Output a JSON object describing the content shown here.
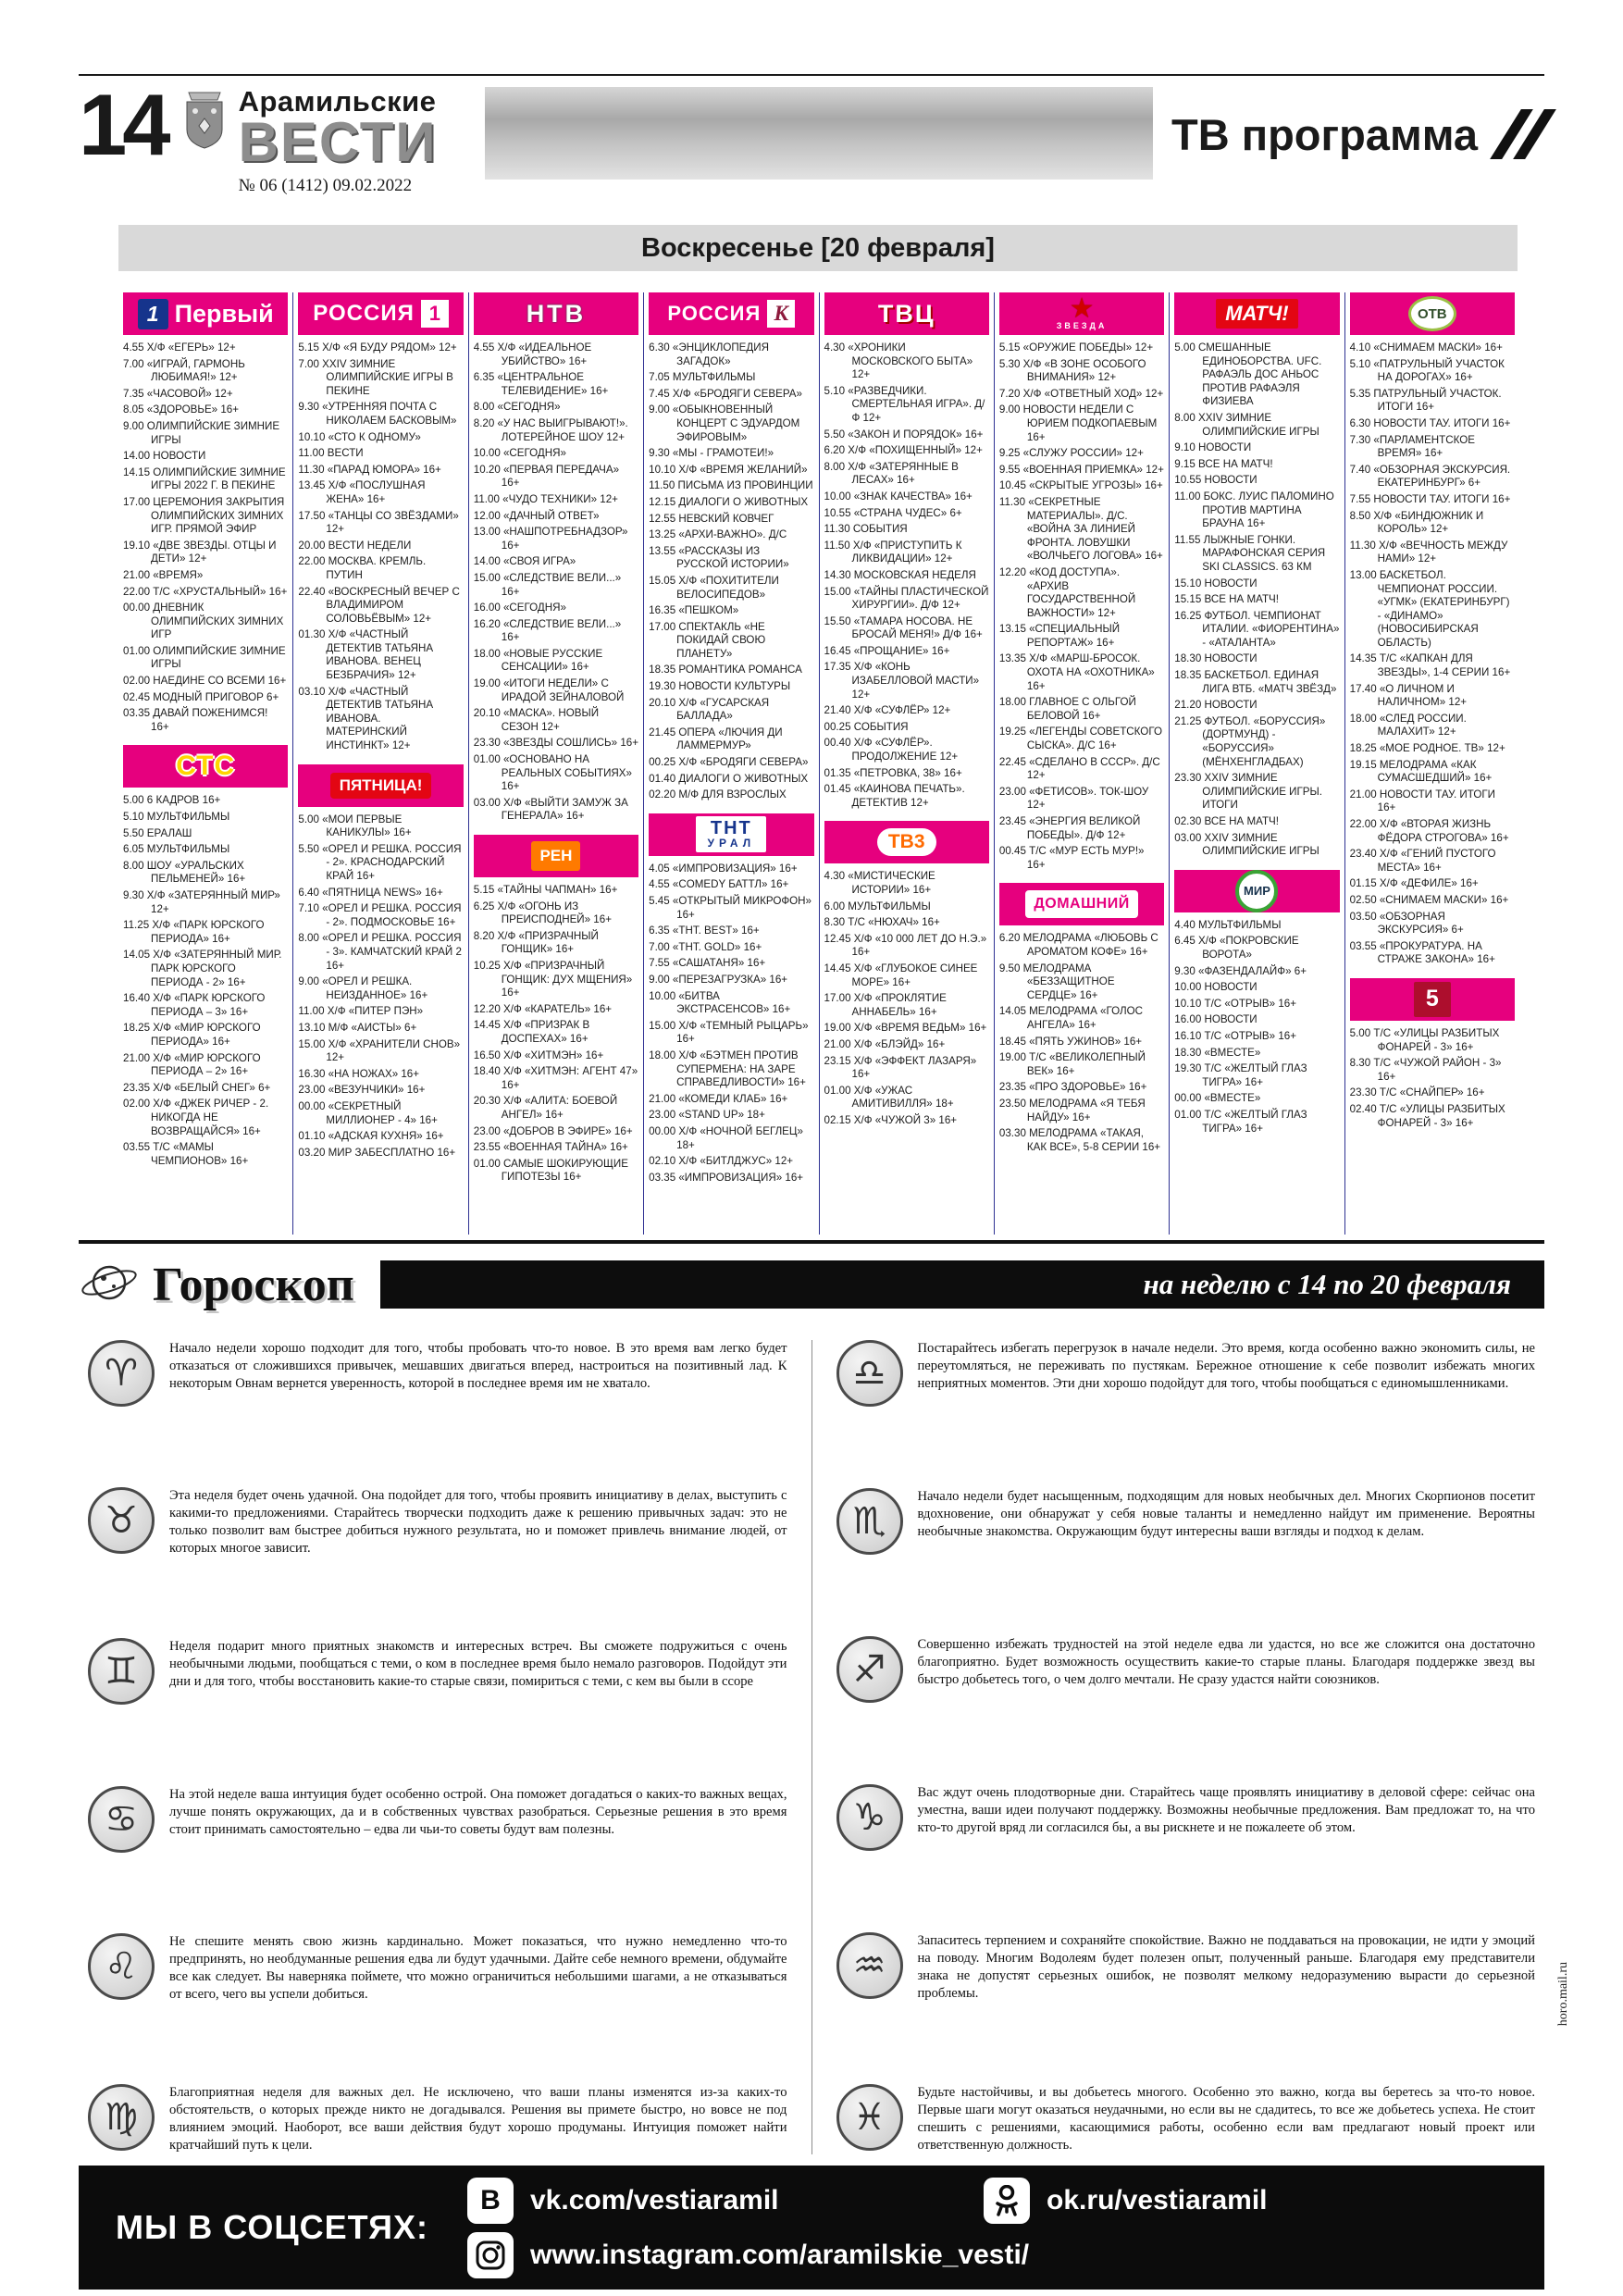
{
  "page": {
    "number": "14",
    "brand_top": "Арамильские",
    "brand_bottom": "ВЕСТИ",
    "issue": "№ 06 (1412) 09.02.2022",
    "section_title": "ТВ программа"
  },
  "colors": {
    "accent_pink": "#e6007e",
    "separator_blue": "#2e3192",
    "banner_gray": "#d9d9d9",
    "footer_black": "#0c0c0c"
  },
  "tv": {
    "day_banner": "Воскресенье [20 февраля]",
    "columns": [
      [
        {
          "key": "pervyi",
          "name": "Первый",
          "logo": {
            "t1": "1",
            "t2": "Первый"
          },
          "programs": [
            "4.55 Х/Ф «ЕГЕРЬ» 12+",
            "7.00 «ИГРАЙ, ГАРМОНЬ ЛЮБИМАЯ!» 12+",
            "7.35 «ЧАСОВОЙ» 12+",
            "8.05 «ЗДОРОВЬЕ» 16+",
            "9.00 ОЛИМПИЙСКИЕ ЗИМНИЕ ИГРЫ",
            "14.00 НОВОСТИ",
            "14.15 ОЛИМПИЙСКИЕ ЗИМНИЕ ИГРЫ 2022 Г. В ПЕКИНЕ",
            "17.00 ЦЕРЕМОНИЯ ЗАКРЫТИЯ ОЛИМПИЙСКИХ ЗИМНИХ ИГР. ПРЯМОЙ ЭФИР",
            "19.10 «ДВЕ ЗВЕЗДЫ. ОТЦЫ И ДЕТИ» 12+",
            "21.00 «ВРЕМЯ»",
            "22.00 Т/С «ХРУСТАЛЬНЫЙ» 16+",
            "00.00 ДНЕВНИК ОЛИМПИЙСКИХ ЗИМНИХ ИГР",
            "01.00 ОЛИМПИЙСКИЕ ЗИМНИЕ ИГРЫ",
            "02.00 НАЕДИНЕ СО ВСЕМИ 16+",
            "02.45 МОДНЫЙ ПРИГОВОР 6+",
            "03.35 ДАВАЙ ПОЖЕНИМСЯ! 16+"
          ]
        },
        {
          "key": "sts",
          "name": "СТС",
          "logo": {
            "t1": "СТС",
            "t2": ""
          },
          "programs": [
            "5.00 6 КАДРОВ 16+",
            "5.10 МУЛЬТФИЛЬМЫ",
            "5.50 ЕРАЛАШ",
            "6.05 МУЛЬТФИЛЬМЫ",
            "8.00 ШОУ «УРАЛЬСКИХ ПЕЛЬМЕНЕЙ» 16+",
            "9.30 Х/Ф «ЗАТЕРЯННЫЙ МИР» 12+",
            "11.25 Х/Ф «ПАРК ЮРСКОГО ПЕРИОДА» 16+",
            "14.05 Х/Ф «ЗАТЕРЯННЫЙ МИР. ПАРК ЮРСКОГО ПЕРИОДА - 2» 16+",
            "16.40 Х/Ф «ПАРК ЮРСКОГО ПЕРИОДА – 3» 16+",
            "18.25 Х/Ф «МИР ЮРСКОГО ПЕРИОДА» 16+",
            "21.00 Х/Ф «МИР ЮРСКОГО ПЕРИОДА – 2» 16+",
            "23.35 Х/Ф «БЕЛЫЙ СНЕГ» 6+",
            "02.00 Х/Ф «ДЖЕК РИЧЕР - 2. НИКОГДА НЕ ВОЗВРАЩАЙСЯ» 16+",
            "03.55 Т/С «МАМЫ ЧЕМПИОНОВ» 16+"
          ]
        }
      ],
      [
        {
          "key": "rossiya1",
          "name": "РОССИЯ 1",
          "logo": {
            "t1": "РОССИЯ",
            "t2": "1"
          },
          "programs": [
            "5.15 Х/Ф «Я БУДУ РЯДОМ» 12+",
            "7.00 XXIV ЗИМНИЕ ОЛИМПИЙСКИЕ ИГРЫ В ПЕКИНЕ",
            "9.30 «УТРЕННЯЯ ПОЧТА С НИКОЛАЕМ БАСКОВЫМ»",
            "10.10 «СТО К ОДНОМУ»",
            "11.00 ВЕСТИ",
            "11.30 «ПАРАД ЮМОРА» 16+",
            "13.45 Х/Ф «ПОСЛУШНАЯ ЖЕНА» 16+",
            "17.50 «ТАНЦЫ СО ЗВЁЗДАМИ» 12+",
            "20.00 ВЕСТИ НЕДЕЛИ",
            "22.00 МОСКВА. КРЕМЛЬ. ПУТИН",
            "22.40 «ВОСКРЕСНЫЙ ВЕЧЕР С ВЛАДИМИРОМ СОЛОВЬЁВЫМ» 12+",
            "01.30 Х/Ф «ЧАСТНЫЙ ДЕТЕКТИВ ТАТЬЯНА ИВАНОВА. ВЕНЕЦ БЕЗБРАЧИЯ» 12+",
            "03.10 Х/Ф «ЧАСТНЫЙ ДЕТЕКТИВ ТАТЬЯНА ИВАНОВА. МАТЕРИНСКИЙ ИНСТИНКТ» 12+"
          ]
        },
        {
          "key": "pyatnica",
          "name": "ПЯТНИЦА!",
          "logo": {
            "t1": "ПЯТНИЦА!",
            "t2": ""
          },
          "programs": [
            "5.00 «МОИ ПЕРВЫЕ КАНИКУЛЫ» 16+",
            "5.50 «ОРЕЛ И РЕШКА. РОССИЯ - 2». КРАСНОДАРСКИЙ КРАЙ 16+",
            "6.40 «ПЯТНИЦА NEWS» 16+",
            "7.10 «ОРЕЛ И РЕШКА. РОССИЯ - 2». ПОДМОСКОВЬЕ 16+",
            "8.00 «ОРЕЛ И РЕШКА. РОССИЯ - 3». КАМЧАТСКИЙ КРАЙ 2 16+",
            "9.00 «ОРЕЛ И РЕШКА. НЕИЗДАННОЕ» 16+",
            "11.00 Х/Ф «ПИТЕР ПЭН»",
            "13.10 М/Ф «АИСТЫ» 6+",
            "15.00 Х/Ф «ХРАНИТЕЛИ СНОВ» 12+",
            "16.30 «НА НОЖАХ» 16+",
            "23.00 «ВЕЗУНЧИКИ» 16+",
            "00.00 «СЕКРЕТНЫЙ МИЛЛИОНЕР - 4» 16+",
            "01.10 «АДСКАЯ КУХНЯ» 16+",
            "03.20 МИР ЗАБЕСПЛАТНО 16+"
          ]
        }
      ],
      [
        {
          "key": "ntv",
          "name": "НТВ",
          "logo": {
            "t1": "НТВ",
            "t2": ""
          },
          "programs": [
            "4.55 Х/Ф «ИДЕАЛЬНОЕ УБИЙСТВО» 16+",
            "6.35 «ЦЕНТРАЛЬНОЕ ТЕЛЕВИДЕНИЕ» 16+",
            "8.00 «СЕГОДНЯ»",
            "8.20 «У НАС ВЫИГРЫВАЮТ!». ЛОТЕРЕЙНОЕ ШОУ 12+",
            "10.00 «СЕГОДНЯ»",
            "10.20 «ПЕРВАЯ ПЕРЕДАЧА» 16+",
            "11.00 «ЧУДО ТЕХНИКИ» 12+",
            "12.00 «ДАЧНЫЙ ОТВЕТ»",
            "13.00 «НАШПОТРЕБНАДЗОР» 16+",
            "14.00 «СВОЯ ИГРА»",
            "15.00 «СЛЕДСТВИЕ ВЕЛИ...» 16+",
            "16.00 «СЕГОДНЯ»",
            "16.20 «СЛЕДСТВИЕ ВЕЛИ...» 16+",
            "18.00 «НОВЫЕ РУССКИЕ СЕНСАЦИИ» 16+",
            "19.00 «ИТОГИ НЕДЕЛИ» С ИРАДОЙ ЗЕЙНАЛОВОЙ",
            "20.10 «МАСКА». НОВЫЙ СЕЗОН 12+",
            "23.30 «ЗВЕЗДЫ СОШЛИСЬ» 16+",
            "01.00 «ОСНОВАНО НА РЕАЛЬНЫХ СОБЫТИЯХ» 16+",
            "03.00 Х/Ф «ВЫЙТИ ЗАМУЖ ЗА ГЕНЕРАЛА» 16+"
          ]
        },
        {
          "key": "ren",
          "name": "РЕН",
          "logo": {
            "t1": "РЕН",
            "t2": ""
          },
          "programs": [
            "5.15 «ТАЙНЫ ЧАПМАН» 16+",
            "6.25 Х/Ф «ОГОНЬ ИЗ ПРЕИСПОДНЕЙ» 16+",
            "8.20 Х/Ф «ПРИЗРАЧНЫЙ ГОНЩИК» 16+",
            "10.25 Х/Ф «ПРИЗРАЧНЫЙ ГОНЩИК: ДУХ МЩЕНИЯ» 16+",
            "12.20 Х/Ф «КАРАТЕЛЬ» 16+",
            "14.45 Х/Ф «ПРИЗРАК В ДОСПЕХАХ» 16+",
            "16.50 Х/Ф «ХИТМЭН» 16+",
            "18.40 Х/Ф «ХИТМЭН: АГЕНТ 47» 16+",
            "20.30 Х/Ф «АЛИТА: БОЕВОЙ АНГЕЛ» 16+",
            "23.00 «ДОБРОВ В ЭФИРЕ» 16+",
            "23.55 «ВОЕННАЯ ТАЙНА» 16+",
            "01.00 САМЫЕ ШОКИРУЮЩИЕ ГИПОТЕЗЫ 16+"
          ]
        }
      ],
      [
        {
          "key": "kultura",
          "name": "РОССИЯ К",
          "logo": {
            "t1": "РОССИЯ",
            "t2": "К"
          },
          "programs": [
            "6.30 «ЭНЦИКЛОПЕДИЯ ЗАГАДОК»",
            "7.05 МУЛЬТФИЛЬМЫ",
            "7.45 Х/Ф «БРОДЯГИ СЕВЕРА»",
            "9.00 «ОБЫКНОВЕННЫЙ КОНЦЕРТ С ЭДУАРДОМ ЭФИРОВЫМ»",
            "9.30 «МЫ - ГРАМОТЕИ!»",
            "10.10 Х/Ф «ВРЕМЯ ЖЕЛАНИЙ»",
            "11.50 ПИСЬМА ИЗ ПРОВИНЦИИ",
            "12.15 ДИАЛОГИ О ЖИВОТНЫХ",
            "12.55 НЕВСКИЙ КОВЧЕГ",
            "13.25 «АРХИ-ВАЖНО». Д/С",
            "13.55 «РАССКАЗЫ ИЗ РУССКОЙ ИСТОРИИ»",
            "15.05 Х/Ф «ПОХИТИТЕЛИ ВЕЛОСИПЕДОВ»",
            "16.35 «ПЕШКОМ»",
            "17.00 СПЕКТАКЛЬ «НЕ ПОКИДАЙ СВОЮ ПЛАНЕТУ»",
            "18.35 РОМАНТИКА РОМАНСА",
            "19.30 НОВОСТИ КУЛЬТУРЫ",
            "20.10 Х/Ф «ГУСАРСКАЯ БАЛЛАДА»",
            "21.45 ОПЕРА «ЛЮЧИЯ ДИ ЛАММЕРМУР»",
            "00.25 Х/Ф «БРОДЯГИ СЕВЕРА»",
            "01.40 ДИАЛОГИ О ЖИВОТНЫХ",
            "02.20 М/Ф ДЛЯ ВЗРОСЛЫХ"
          ]
        },
        {
          "key": "tnt",
          "name": "ТНТ УРАЛ",
          "logo": {
            "t1": "ТНТ",
            "t2": "УРАЛ"
          },
          "programs": [
            "4.05 «ИМПРОВИЗАЦИЯ» 16+",
            "4.55 «COMEDY БАТТЛ» 16+",
            "5.45 «ОТКРЫТЫЙ МИКРОФОН» 16+",
            "6.35 «ТНТ. BEST» 16+",
            "7.00 «ТНТ. GOLD» 16+",
            "7.55 «САШАТАНЯ» 16+",
            "9.00 «ПЕРЕЗАГРУЗКА» 16+",
            "10.00 «БИТВА ЭКСТРАСЕНСОВ» 16+",
            "15.00 Х/Ф «ТЕМНЫЙ РЫЦАРЬ» 16+",
            "18.00 Х/Ф «БЭТМЕН ПРОТИВ СУПЕРМЕНА: НА ЗАРЕ СПРАВЕДЛИВОСТИ» 16+",
            "21.00 «КОМЕДИ КЛАБ» 16+",
            "23.00 «STAND UP» 18+",
            "00.00 Х/Ф «НОЧНОЙ БЕГЛЕЦ» 18+",
            "02.10 Х/Ф «БИТЛДЖУС» 12+",
            "03.35 «ИМПРОВИЗАЦИЯ» 16+"
          ]
        }
      ],
      [
        {
          "key": "tvc",
          "name": "ТВЦ",
          "logo": {
            "t1": "ТВЦ",
            "t2": ""
          },
          "programs": [
            "4.30 «ХРОНИКИ МОСКОВСКОГО БЫТА» 12+",
            "5.10 «РАЗВЕДЧИКИ. СМЕРТЕЛЬНАЯ ИГРА». Д/Ф 12+",
            "5.50 «ЗАКОН И ПОРЯДОК» 16+",
            "6.20 Х/Ф «ПОХИЩЕННЫЙ» 12+",
            "8.00 Х/Ф «ЗАТЕРЯННЫЕ В ЛЕСАХ» 16+",
            "10.00 «ЗНАК КАЧЕСТВА» 16+",
            "10.55 «СТРАНА ЧУДЕС» 6+",
            "11.30 СОБЫТИЯ",
            "11.50 Х/Ф «ПРИСТУПИТЬ К ЛИКВИДАЦИИ» 12+",
            "14.30 МОСКОВСКАЯ НЕДЕЛЯ",
            "15.00 «ТАЙНЫ ПЛАСТИЧЕСКОЙ ХИРУРГИИ». Д/Ф 12+",
            "15.50 «ТАМАРА НОСОВА. НЕ БРОСАЙ МЕНЯ!» Д/Ф 16+",
            "16.45 «ПРОЩАНИЕ» 16+",
            "17.35 Х/Ф «КОНЬ ИЗАБЕЛЛОВОЙ МАСТИ» 12+",
            "21.40 Х/Ф «СУФЛЁР» 12+",
            "00.25 СОБЫТИЯ",
            "00.40 Х/Ф «СУФЛЁР». ПРОДОЛЖЕНИЕ 12+",
            "01.35 «ПЕТРОВКА, 38» 16+",
            "01.45 «КАИНОВА ПЕЧАТЬ». ДЕТЕКТИВ 12+"
          ]
        },
        {
          "key": "tv3",
          "name": "ТВ3",
          "logo": {
            "t1": "ТВ3",
            "t2": ""
          },
          "programs": [
            "4.30 «МИСТИЧЕСКИЕ ИСТОРИИ» 16+",
            "6.00 МУЛЬТФИЛЬМЫ",
            "8.30 Т/С «НЮХАЧ» 16+",
            "12.45 Х/Ф «10 000 ЛЕТ ДО Н.Э.» 16+",
            "14.45 Х/Ф «ГЛУБОКОЕ СИНЕЕ МОРЕ» 16+",
            "17.00 Х/Ф «ПРОКЛЯТИЕ АННАБЕЛЬ» 16+",
            "19.00 Х/Ф «ВРЕМЯ ВЕДЬМ» 16+",
            "21.00 Х/Ф «БЛЭЙД» 16+",
            "23.15 Х/Ф «ЭФФЕКТ ЛАЗАРЯ» 16+",
            "01.00 Х/Ф «УЖАС АМИТИВИЛЛЯ» 18+",
            "02.15 Х/Ф «ЧУЖОЙ 3» 16+"
          ]
        }
      ],
      [
        {
          "key": "zvezda",
          "name": "ЗВЕЗДА",
          "logo": {
            "t1": "★",
            "t2": "ЗВЕЗДА"
          },
          "programs": [
            "5.15 «ОРУЖИЕ ПОБЕДЫ» 12+",
            "5.30 Х/Ф «В ЗОНЕ ОСОБОГО ВНИМАНИЯ» 12+",
            "7.20 Х/Ф «ОТВЕТНЫЙ ХОД» 12+",
            "9.00 НОВОСТИ НЕДЕЛИ С ЮРИЕМ ПОДКОПАЕВЫМ 16+",
            "9.25 «СЛУЖУ РОССИИ» 12+",
            "9.55 «ВОЕННАЯ ПРИЕМКА» 12+",
            "10.45 «СКРЫТЫЕ УГРОЗЫ» 16+",
            "11.30 «СЕКРЕТНЫЕ МАТЕРИАЛЫ». Д/С. «ВОЙНА ЗА ЛИНИЕЙ ФРОНТА. ЛОВУШКИ «ВОЛЧЬЕГО ЛОГОВА» 16+",
            "12.20 «КОД ДОСТУПА». «АРХИВ ГОСУДАРСТВЕННОЙ ВАЖНОСТИ» 12+",
            "13.15 «СПЕЦИАЛЬНЫЙ РЕПОРТАЖ» 16+",
            "13.35 Х/Ф «МАРШ-БРОСОК. ОХОТА НА «ОХОТНИКА» 16+",
            "18.00 ГЛАВНОЕ С ОЛЬГОЙ БЕЛОВОЙ 16+",
            "19.25 «ЛЕГЕНДЫ СОВЕТСКОГО СЫСКА». Д/С 16+",
            "22.45 «СДЕЛАНО В СССР». Д/С 12+",
            "23.00 «ФЕТИСОВ». ТОК-ШОУ 12+",
            "23.45 «ЭНЕРГИЯ ВЕЛИКОЙ ПОБЕДЫ». Д/Ф 12+",
            "00.45 Т/С «МУР ЕСТЬ МУР!» 16+"
          ]
        },
        {
          "key": "domashniy",
          "name": "ДОМАШНИЙ",
          "logo": {
            "t1": "ДОМАШНИЙ",
            "t2": ""
          },
          "programs": [
            "6.20 МЕЛОДРАМА «ЛЮБОВЬ С АРОМАТОМ КОФЕ» 16+",
            "9.50 МЕЛОДРАМА «БЕЗЗАЩИТНОЕ СЕРДЦЕ» 16+",
            "14.05 МЕЛОДРАМА «ГОЛОС АНГЕЛА» 16+",
            "18.45 «ПЯТЬ УЖИНОВ» 16+",
            "19.00 Т/С «ВЕЛИКОЛЕПНЫЙ ВЕК» 16+",
            "23.35 «ПРО ЗДОРОВЬЕ» 16+",
            "23.50 МЕЛОДРАМА «Я ТЕБЯ НАЙДУ» 16+",
            "03.30 МЕЛОДРАМА «ТАКАЯ, КАК ВСЕ», 5-8 СЕРИИ 16+"
          ]
        }
      ],
      [
        {
          "key": "match",
          "name": "МАТЧ!",
          "logo": {
            "t1": "МАТЧ!",
            "t2": ""
          },
          "programs": [
            "5.00 СМЕШАННЫЕ ЕДИНОБОРСТВА. UFC. РАФАЭЛЬ ДОС АНЬОС ПРОТИВ РАФАЭЛЯ ФИЗИЕВА",
            "8.00 XXIV ЗИМНИЕ ОЛИМПИЙСКИЕ ИГРЫ",
            "9.10 НОВОСТИ",
            "9.15 ВСЕ НА МАТЧ!",
            "10.55 НОВОСТИ",
            "11.00 БОКС. ЛУИС ПАЛОМИНО ПРОТИВ МАРТИНА БРАУНА 16+",
            "11.55 ЛЫЖНЫЕ ГОНКИ. МАРАФОНСКАЯ СЕРИЯ SKI CLASSICS. 63 КМ",
            "15.10 НОВОСТИ",
            "15.15 ВСЕ НА МАТЧ!",
            "16.25 ФУТБОЛ. ЧЕМПИОНАТ ИТАЛИИ. «ФИОРЕНТИНА» - «АТАЛАНТА»",
            "18.30 НОВОСТИ",
            "18.35 БАСКЕТБОЛ. ЕДИНАЯ ЛИГА ВТБ. «МАТЧ ЗВЁЗД»",
            "21.20 НОВОСТИ",
            "21.25 ФУТБОЛ. «БОРУССИЯ» (ДОРТМУНД) - «БОРУССИЯ» (МЁНХЕНГЛАДБАХ)",
            "23.30 XXIV ЗИМНИЕ ОЛИМПИЙСКИЕ ИГРЫ. ИТОГИ",
            "02.30 ВСЕ НА МАТЧ!",
            "03.00 XXIV ЗИМНИЕ ОЛИМПИЙСКИЕ ИГРЫ"
          ]
        },
        {
          "key": "mir",
          "name": "МИР",
          "logo": {
            "t1": "МИР",
            "t2": ""
          },
          "programs": [
            "4.40 МУЛЬТФИЛЬМЫ",
            "6.45 Х/Ф «ПОКРОВСКИЕ ВОРОТА»",
            "9.30 «ФАЗЕНДАЛАЙФ» 6+",
            "10.00 НОВОСТИ",
            "10.10 Т/С «ОТРЫВ» 16+",
            "16.00 НОВОСТИ",
            "16.10 Т/С «ОТРЫВ» 16+",
            "18.30 «ВМЕСТЕ»",
            "19.30 Т/С «ЖЕЛТЫЙ ГЛАЗ ТИГРА» 16+",
            "00.00 «ВМЕСТЕ»",
            "01.00 Т/С «ЖЕЛТЫЙ ГЛАЗ ТИГРА» 16+"
          ]
        }
      ],
      [
        {
          "key": "otv",
          "name": "ОТВ",
          "logo": {
            "t1": "ОТВ",
            "t2": ""
          },
          "programs": [
            "4.10 «СНИМАЕМ МАСКИ» 16+",
            "5.10 «ПАТРУЛЬНЫЙ УЧАСТОК НА ДОРОГАХ» 16+",
            "5.35 ПАТРУЛЬНЫЙ УЧАСТОК. ИТОГИ 16+",
            "6.30 НОВОСТИ ТАУ. ИТОГИ 16+",
            "7.30 «ПАРЛАМЕНТСКОЕ ВРЕМЯ» 16+",
            "7.40 «ОБЗОРНАЯ ЭКСКУРСИЯ. ЕКАТЕРИНБУРГ» 6+",
            "7.55 НОВОСТИ ТАУ. ИТОГИ 16+",
            "8.50 Х/Ф «БИНДЮЖНИК И КОРОЛЬ» 12+",
            "11.30 Х/Ф «ВЕЧНОСТЬ МЕЖДУ НАМИ» 12+",
            "13.00 БАСКЕТБОЛ. ЧЕМПИОНАТ РОССИИ. «УГМК» (ЕКАТЕРИНБУРГ) - «ДИНАМО» (НОВОСИБИРСКАЯ ОБЛАСТЬ)",
            "14.35 Т/С «КАПКАН ДЛЯ ЗВЕЗДЫ», 1-4 СЕРИИ 16+",
            "17.40 «О ЛИЧНОМ И НАЛИЧНОМ» 12+",
            "18.00 «СЛЕД РОССИИ. МАЛАХИТ» 12+",
            "18.25 «МОЕ РОДНОЕ. ТВ» 12+",
            "19.15 МЕЛОДРАМА «КАК СУМАСШЕДШИЙ» 16+",
            "21.00 НОВОСТИ ТАУ. ИТОГИ 16+",
            "22.00 Х/Ф «ВТОРАЯ ЖИЗНЬ ФЁДОРА СТРОГОВА» 16+",
            "23.40 Х/Ф «ГЕНИЙ ПУСТОГО МЕСТА» 16+",
            "01.15 Х/Ф «ДЕФИЛЕ» 16+",
            "02.50 «СНИМАЕМ МАСКИ» 16+",
            "03.50 «ОБЗОРНАЯ ЭКСКУРСИЯ» 6+",
            "03.55 «ПРОКУРАТУРА. НА СТРАЖЕ ЗАКОНА» 16+"
          ]
        },
        {
          "key": "five",
          "name": "5",
          "logo": {
            "t1": "5",
            "t2": ""
          },
          "programs": [
            "5.00 Т/С «УЛИЦЫ РАЗБИТЫХ ФОНАРЕЙ - 3» 16+",
            "8.30 Т/С «ЧУЖОЙ РАЙОН - 3» 16+",
            "23.30 Т/С «СНАЙПЕР» 16+",
            "02.40 Т/С «УЛИЦЫ РАЗБИТЫХ ФОНАРЕЙ - 3» 16+"
          ]
        }
      ]
    ]
  },
  "horoscope": {
    "title": "Гороскоп",
    "subtitle": "на неделю с 14 по 20 февраля",
    "watermark": "horo.mail.ru",
    "entries": [
      {
        "sign": "aries",
        "symbol": "♈",
        "text": "Начало недели хорошо подходит для того, чтобы пробовать что-то новое. В это время вам легко будет отказаться от сложившихся привычек, мешавших двигаться вперед, настроиться на позитивный лад. К некоторым Овнам вернется уверенность, которой в последнее время им не хватало."
      },
      {
        "sign": "taurus",
        "symbol": "♉",
        "text": "Эта неделя будет очень удачной. Она подойдет для того, чтобы проявить инициативу в делах, выступить с какими-то предложениями. Старайтесь творчески подходить даже к решению привычных задач: это не только позволит вам быстрее добиться нужного результата, но и поможет привлечь внимание людей, от которых многое зависит."
      },
      {
        "sign": "gemini",
        "symbol": "♊",
        "text": "Неделя подарит много приятных знакомств и интересных встреч. Вы сможете подружиться с очень необычными людьми, пообщаться с теми, о ком в последнее время было немало разговоров. Подойдут эти дни и для того, чтобы восстановить какие-то старые связи, помириться с теми, с кем вы были в ссоре"
      },
      {
        "sign": "cancer",
        "symbol": "♋",
        "text": "На этой неделе ваша интуиция будет особенно острой. Она поможет догадаться о каких-то важных вещах, лучше понять окружающих, да и в собственных чувствах разобраться. Серьезные решения в это время стоит принимать самостоятельно – едва ли чьи-то советы будут вам полезны."
      },
      {
        "sign": "leo",
        "symbol": "♌",
        "text": "Не спешите менять свою жизнь кардинально. Может показаться, что нужно немедленно что-то предпринять, но необдуманные решения едва ли будут удачными. Дайте себе немного времени, обдумайте все как следует. Вы наверняка поймете, что можно ограничиться небольшими шагами, а не отказываться от всего, чего вы успели добиться."
      },
      {
        "sign": "virgo",
        "symbol": "♍",
        "text": "Благоприятная неделя для важных дел. Не исключено, что ваши планы изменятся из-за каких-то обстоятельств, о которых прежде никто не догадывался. Решения вы примете быстро, но вовсе не под влиянием эмоций. Наоборот, все ваши действия будут хорошо продуманы. Интуиция поможет найти кратчайший путь к цели."
      },
      {
        "sign": "libra",
        "symbol": "♎",
        "text": "Постарайтесь избегать перегрузок в начале недели. Это время, когда особенно важно экономить силы, не переутомляться, не переживать по пустякам. Бережное отношение к себе позволит избежать многих неприятных моментов. Эти дни хорошо подойдут для того, чтобы пообщаться с единомышленниками."
      },
      {
        "sign": "scorpio",
        "symbol": "♏",
        "text": "Начало недели будет насыщенным, подходящим для новых необычных дел. Многих Скорпионов посетит вдохновение, они обнаружат у себя новые таланты и немедленно найдут им применение. Вероятны необычные знакомства. Окружающим будут интересны ваши взгляды и подход к делам."
      },
      {
        "sign": "sagittarius",
        "symbol": "♐",
        "text": "Совершенно избежать трудностей на этой неделе едва ли удастся, но все же сложится она достаточно благоприятно. Будет возможность осуществить какие-то старые планы. Благодаря поддержке звезд вы быстро добьетесь того, о чем долго мечтали. Не сразу удастся найти союзников."
      },
      {
        "sign": "capricorn",
        "symbol": "♑",
        "text": "Вас ждут очень плодотворные дни. Старайтесь чаще проявлять инициативу в деловой сфере: сейчас она уместна, ваши идеи получают поддержку. Возможны необычные предложения. Вам предложат то, на что кто-то другой вряд ли согласился бы, а вы рискнете и не пожалеете об этом."
      },
      {
        "sign": "aquarius",
        "symbol": "♒",
        "text": "Запаситесь терпением и сохраняйте спокойствие. Важно не поддаваться на провокации, не идти у эмоций на поводу. Многим Водолеям будет полезен опыт, полученный раньше. Благодаря ему представители знака не допустят серьезных ошибок, не позволят мелкому недоразумению вырасти до серьезной проблемы."
      },
      {
        "sign": "pisces",
        "symbol": "♓",
        "text": "Будьте настойчивы, и вы добьетесь многого. Особенно это важно, когда вы беретесь за что-то новое. Первые шаги могут оказаться неудачными, но если вы не сдадитесь, то все же добьетесь успеха. Не стоит спешить с решениями, касающимися работы, особенно если вам предлагают новый проект или ответственную должность."
      }
    ]
  },
  "footer": {
    "label": "МЫ В СОЦСЕТЯХ:",
    "links": [
      {
        "icon": "vk-icon",
        "text": "vk.com/vestiaramil"
      },
      {
        "icon": "ok-icon",
        "text": "ok.ru/vestiaramil"
      },
      {
        "icon": "instagram-icon",
        "text": "www.instagram.com/aramilskie_vesti/"
      }
    ]
  }
}
